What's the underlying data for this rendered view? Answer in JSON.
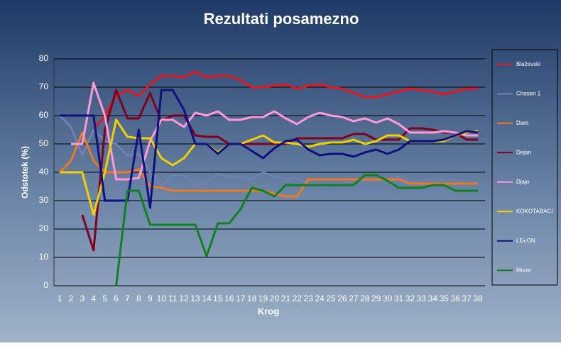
{
  "chart_data": {
    "type": "line",
    "title": "Rezultati posamezno",
    "xlabel": "Krog",
    "ylabel": "Odstotek (%)",
    "categories": [
      "1",
      "2",
      "3",
      "4",
      "5",
      "6",
      "7",
      "8",
      "9",
      "10",
      "11",
      "12",
      "13",
      "14",
      "15",
      "16",
      "17",
      "18",
      "19",
      "20",
      "21",
      "22",
      "23",
      "24",
      "25",
      "26",
      "27",
      "28",
      "29",
      "30",
      "31",
      "32",
      "33",
      "34",
      "35",
      "36",
      "37",
      "38"
    ],
    "ylim": [
      0,
      80
    ],
    "yticks": [
      0,
      10,
      20,
      30,
      40,
      50,
      60,
      70,
      80
    ],
    "grid": true,
    "legend": "right",
    "series": [
      {
        "name": "Blaževski",
        "color": "#e8141e",
        "values": [
          null,
          null,
          null,
          55,
          60,
          67,
          69,
          67,
          71,
          74,
          74,
          73.5,
          75.5,
          73.5,
          74,
          74,
          72.5,
          70,
          70,
          70.5,
          71,
          69.5,
          70.5,
          71,
          70,
          69.5,
          68,
          66.5,
          66.5,
          67.5,
          68.5,
          69.5,
          69,
          68.5,
          67.5,
          68.5,
          69.5,
          69.5
        ]
      },
      {
        "name": "Chosen 1",
        "color": "#7080b0",
        "values": [
          60,
          56,
          46,
          55,
          51,
          50,
          46,
          46.5,
          40,
          35,
          39,
          39,
          35.5,
          36.5,
          39.5,
          38.5,
          38.5,
          37.5,
          40,
          38.5,
          37.5,
          38,
          36,
          35.5,
          36,
          36,
          37.5,
          37,
          37,
          37,
          38.5,
          36.5,
          37,
          37.5,
          37.5,
          37.5,
          36,
          36
        ]
      },
      {
        "name": "Dare",
        "color": "#f07820",
        "values": [
          40,
          44,
          54,
          44,
          40,
          40,
          40,
          41,
          35,
          34.5,
          33.5,
          33.5,
          33.5,
          33.5,
          33.5,
          33.5,
          33.5,
          33.5,
          33.5,
          32.5,
          31.5,
          31.5,
          37.5,
          37.5,
          37.5,
          37.5,
          37.5,
          37.5,
          37.5,
          37.5,
          37.5,
          36,
          36,
          36,
          36,
          36,
          36,
          36
        ]
      },
      {
        "name": "Dejan",
        "color": "#800020",
        "values": [
          null,
          null,
          25,
          12.5,
          55,
          69,
          59,
          59,
          68,
          58,
          60,
          60,
          53,
          52.5,
          52.5,
          50,
          50,
          50,
          50,
          50,
          50,
          52,
          52,
          52,
          52,
          52,
          53.5,
          53.5,
          51.5,
          51.5,
          51.5,
          55.5,
          55.5,
          55,
          54,
          54,
          51.5,
          51.5
        ]
      },
      {
        "name": "Djajo",
        "color": "#ff99d8",
        "values": [
          null,
          50,
          50,
          71.5,
          60,
          37.5,
          37.5,
          38,
          51,
          58.5,
          58.5,
          56,
          61,
          60,
          61.5,
          58.5,
          58.5,
          59.5,
          59.5,
          61.5,
          59,
          57,
          59.5,
          61,
          60,
          59.5,
          58,
          59,
          57.5,
          59,
          57,
          54,
          54,
          54,
          54.5,
          54,
          53,
          53
        ]
      },
      {
        "name": "KOKOTABACI",
        "color": "#f0d000",
        "values": [
          40,
          40,
          40,
          25,
          40,
          58.5,
          52.5,
          52,
          52,
          45,
          42.5,
          45,
          50,
          50,
          47,
          50,
          50,
          51.5,
          53,
          50.5,
          50.5,
          50,
          49,
          50,
          50.5,
          50.5,
          51.5,
          50,
          51,
          53,
          53,
          51,
          51,
          51,
          51,
          53,
          54,
          54.5
        ]
      },
      {
        "name": "LE◐ON",
        "color": "#101080",
        "values": [
          60,
          60,
          60,
          60,
          30,
          30,
          30,
          55,
          27.5,
          69,
          69,
          62,
          50,
          50,
          46.5,
          50,
          50,
          47.5,
          45,
          48.5,
          51,
          51.5,
          48,
          46,
          46.5,
          46.5,
          45.5,
          47,
          48,
          46.5,
          48,
          51,
          51,
          51,
          51.5,
          53,
          54.5,
          54
        ]
      },
      {
        "name": "Murat",
        "color": "#108020",
        "values": [
          null,
          null,
          null,
          null,
          null,
          0,
          33.5,
          33.5,
          21.5,
          21.5,
          21.5,
          21.5,
          21.5,
          10.5,
          22,
          22,
          27,
          34.5,
          33.5,
          31.5,
          35.5,
          35.5,
          35.5,
          35.5,
          35.5,
          35.5,
          35.5,
          39,
          39,
          37,
          34.5,
          34.5,
          34.5,
          35.5,
          35.5,
          33.5,
          33.5,
          33.5
        ]
      }
    ]
  }
}
